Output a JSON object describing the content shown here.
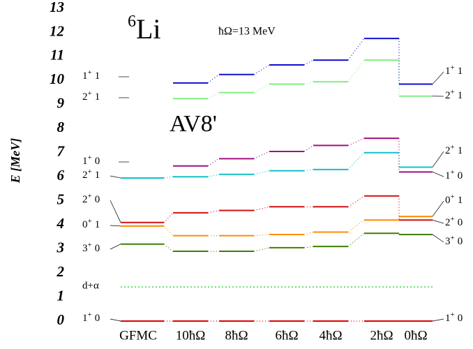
{
  "chart_data": {
    "type": "level-diagram",
    "nucleus": {
      "mass": "6",
      "symbol": "Li"
    },
    "annotation": "ħΩ=13 MeV",
    "interaction": "AV8'",
    "y_label": "E [MeV]",
    "ylim": [
      0,
      13
    ],
    "yticks": [
      0,
      1,
      2,
      3,
      4,
      5,
      6,
      7,
      8,
      9,
      10,
      11,
      12,
      13
    ],
    "categories": [
      "GFMC",
      "10ħΩ",
      "8ħΩ",
      "6ħΩ",
      "4ħΩ",
      "2ħΩ",
      "0ħΩ"
    ],
    "series": [
      {
        "J": "1",
        "parity": "+",
        "T": "0",
        "color": "#e00000",
        "values": [
          0,
          0,
          0,
          0,
          0,
          0,
          0
        ]
      },
      {
        "J": "3",
        "parity": "+",
        "T": "0",
        "color": "#3c8000",
        "values": [
          3.2,
          2.9,
          2.9,
          3.05,
          3.1,
          3.65,
          3.6
        ]
      },
      {
        "J": "0",
        "parity": "+",
        "T": "1",
        "color": "#ff8c00",
        "values": [
          3.95,
          3.55,
          3.55,
          3.6,
          3.7,
          4.2,
          4.35
        ]
      },
      {
        "J": "2",
        "parity": "+",
        "T": "0",
        "color": "#d01010",
        "values": [
          4.1,
          4.5,
          4.6,
          4.75,
          4.75,
          5.2,
          4.2
        ]
      },
      {
        "J": "2",
        "parity": "+",
        "T": "1",
        "color": "#10c0c8",
        "values": [
          5.95,
          6.0,
          6.1,
          6.25,
          6.3,
          7.0,
          6.4
        ]
      },
      {
        "J": "1",
        "parity": "+",
        "T": "0",
        "color": "#a01080",
        "values": [
          null,
          6.45,
          6.75,
          7.05,
          7.3,
          7.6,
          6.2
        ]
      },
      {
        "J": "2",
        "parity": "+",
        "T": "1",
        "color": "#80f080",
        "values": [
          null,
          9.25,
          9.5,
          9.85,
          9.95,
          10.85,
          9.35
        ]
      },
      {
        "J": "1",
        "parity": "+",
        "T": "1",
        "color": "#1010d0",
        "values": [
          null,
          9.9,
          10.25,
          10.65,
          10.85,
          11.75,
          9.85
        ]
      }
    ],
    "threshold": {
      "name": "d+α",
      "value": 1.42,
      "color": "#00c000"
    }
  }
}
